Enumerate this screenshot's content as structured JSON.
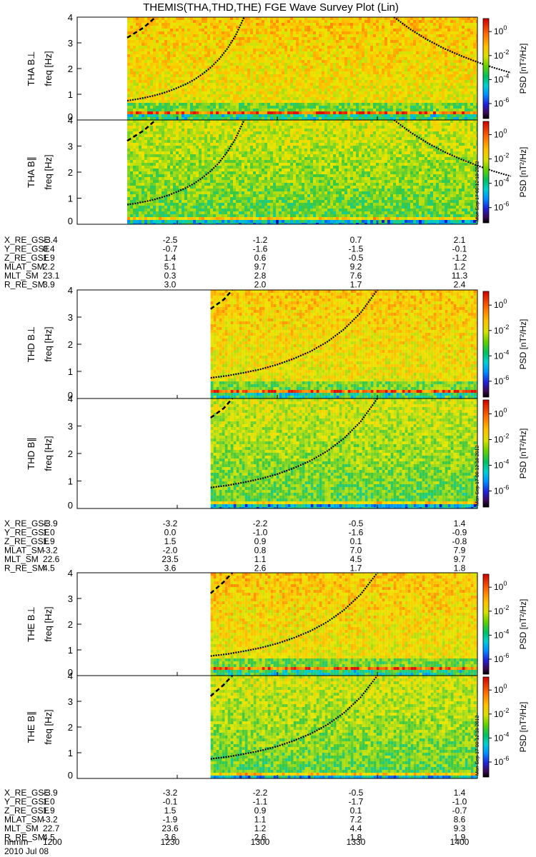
{
  "title": "THEMIS(THA,THD,THE) FGE Wave Survey Plot (Lin)",
  "stamp": "Mon Sep 17 00:12:18 2012",
  "date": "2010 Jul 08",
  "time_row": {
    "label": "hhmm",
    "values": [
      "1200",
      "1230",
      "1300",
      "1330",
      "1400"
    ]
  },
  "colorbar": {
    "label": "PSD [nT²/Hz]",
    "ticks": [
      {
        "base": "10",
        "exp": "0",
        "frac": 0.13
      },
      {
        "base": "10",
        "exp": "-2",
        "frac": 0.37
      },
      {
        "base": "10",
        "exp": "-4",
        "frac": 0.61
      },
      {
        "base": "10",
        "exp": "-6",
        "frac": 0.85
      }
    ]
  },
  "freq_ticks": [
    "0",
    "1",
    "2",
    "3",
    "4"
  ],
  "chart_data": [
    {
      "type": "heatmap",
      "probe": "THA",
      "panels": [
        {
          "name": "THA B⊥",
          "ylabel": "freq [Hz]",
          "ylim": [
            0,
            4
          ],
          "data_start": 1215,
          "bright_line": true,
          "curve_left": [
            [
              1215.0,
              0.75
            ],
            [
              1217.5,
              0.8
            ],
            [
              1220.0,
              0.86
            ],
            [
              1222.5,
              0.93
            ],
            [
              1225.0,
              1.02
            ],
            [
              1227.5,
              1.12
            ],
            [
              1230.0,
              1.25
            ],
            [
              1232.5,
              1.39
            ],
            [
              1235.0,
              1.56
            ],
            [
              1237.5,
              1.78
            ],
            [
              1240.0,
              2.04
            ],
            [
              1242.5,
              2.36
            ],
            [
              1245.0,
              2.77
            ],
            [
              1247.5,
              3.29
            ],
            [
              1250.0,
              3.98
            ],
            [
              1250.1,
              4.0
            ]
          ],
          "curve_right": [
            [
              1335.0,
              4.0
            ],
            [
              1340.0,
              3.52
            ],
            [
              1345.0,
              3.12
            ],
            [
              1350.0,
              2.78
            ],
            [
              1355.0,
              2.5
            ],
            [
              1360.0,
              2.25
            ],
            [
              1365.0,
              2.03
            ],
            [
              1370.0,
              1.84
            ]
          ],
          "curve_dashed": [
            [
              1215.0,
              3.2
            ],
            [
              1220.0,
              3.6
            ],
            [
              1223.5,
              4.0
            ]
          ]
        },
        {
          "name": "THA B∥",
          "ylabel": "freq [Hz]",
          "ylim": [
            0,
            4
          ],
          "data_start": 1215,
          "bright_line": false,
          "curve_left": [
            [
              1215.0,
              0.75
            ],
            [
              1217.5,
              0.8
            ],
            [
              1220.0,
              0.86
            ],
            [
              1222.5,
              0.93
            ],
            [
              1225.0,
              1.02
            ],
            [
              1227.5,
              1.12
            ],
            [
              1230.0,
              1.25
            ],
            [
              1232.5,
              1.39
            ],
            [
              1235.0,
              1.56
            ],
            [
              1237.5,
              1.78
            ],
            [
              1240.0,
              2.04
            ],
            [
              1242.5,
              2.36
            ],
            [
              1245.0,
              2.77
            ],
            [
              1247.5,
              3.29
            ],
            [
              1250.0,
              3.98
            ],
            [
              1250.1,
              4.0
            ]
          ],
          "curve_right": [
            [
              1335.0,
              4.0
            ],
            [
              1340.0,
              3.52
            ],
            [
              1345.0,
              3.12
            ],
            [
              1350.0,
              2.78
            ],
            [
              1355.0,
              2.5
            ],
            [
              1360.0,
              2.25
            ],
            [
              1365.0,
              2.03
            ],
            [
              1370.0,
              1.84
            ]
          ],
          "curve_dashed": [
            [
              1215.0,
              3.2
            ],
            [
              1220.0,
              3.6
            ],
            [
              1223.5,
              4.0
            ]
          ]
        }
      ],
      "ephemeris": [
        {
          "label": "X_RE_GSE",
          "values": [
            "-3.4",
            "-2.5",
            "-1.2",
            "0.7",
            "2.1"
          ]
        },
        {
          "label": "Y_RE_GSE",
          "values": [
            "0.4",
            "-0.7",
            "-1.6",
            "-1.5",
            "-0.1"
          ]
        },
        {
          "label": "Z_RE_GSE",
          "values": [
            "1.9",
            "1.4",
            "0.6",
            "-0.5",
            "-1.2"
          ]
        },
        {
          "label": "MLAT_SM",
          "values": [
            "2.2",
            "5.1",
            "9.7",
            "9.2",
            "1.2"
          ]
        },
        {
          "label": "MLT_SM",
          "values": [
            "23.1",
            "0.3",
            "2.8",
            "7.6",
            "11.3"
          ]
        },
        {
          "label": "R_RE_SM",
          "values": [
            "3.9",
            "3.0",
            "2.0",
            "1.7",
            "2.4"
          ]
        }
      ]
    },
    {
      "type": "heatmap",
      "probe": "THD",
      "panels": [
        {
          "name": "THD B⊥",
          "ylabel": "freq [Hz]",
          "ylim": [
            0,
            4
          ],
          "data_start": 1240,
          "bright_line": true,
          "curve_left": [
            [
              1240.0,
              0.76
            ],
            [
              1245.0,
              0.84
            ],
            [
              1250.0,
              0.95
            ],
            [
              1255.0,
              1.08
            ],
            [
              1260.0,
              1.25
            ],
            [
              1265.0,
              1.47
            ],
            [
              1270.0,
              1.74
            ],
            [
              1275.0,
              2.09
            ],
            [
              1280.0,
              2.55
            ],
            [
              1285.0,
              3.16
            ],
            [
              1290.0,
              4.0
            ]
          ],
          "curve_right": [],
          "curve_dashed": [
            [
              1240.0,
              3.3
            ],
            [
              1244.0,
              3.65
            ],
            [
              1246.5,
              4.0
            ]
          ]
        },
        {
          "name": "THD B∥",
          "ylabel": "freq [Hz]",
          "ylim": [
            0,
            4
          ],
          "data_start": 1240,
          "bright_line": false,
          "curve_left": [
            [
              1240.0,
              0.76
            ],
            [
              1245.0,
              0.84
            ],
            [
              1250.0,
              0.95
            ],
            [
              1255.0,
              1.08
            ],
            [
              1260.0,
              1.25
            ],
            [
              1265.0,
              1.47
            ],
            [
              1270.0,
              1.74
            ],
            [
              1275.0,
              2.09
            ],
            [
              1280.0,
              2.55
            ],
            [
              1285.0,
              3.16
            ],
            [
              1290.0,
              4.0
            ]
          ],
          "curve_right": [],
          "curve_dashed": [
            [
              1240.0,
              3.3
            ],
            [
              1244.0,
              3.65
            ],
            [
              1246.5,
              4.0
            ]
          ]
        }
      ],
      "ephemeris": [
        {
          "label": "X_RE_GSE",
          "values": [
            "-3.9",
            "-3.2",
            "-2.2",
            "-0.5",
            "1.4"
          ]
        },
        {
          "label": "Y_RE_GSE",
          "values": [
            "1.0",
            "0.0",
            "-1.0",
            "-1.6",
            "-0.9"
          ]
        },
        {
          "label": "Z_RE_GSE",
          "values": [
            "1.9",
            "1.5",
            "0.9",
            "0.1",
            "-0.8"
          ]
        },
        {
          "label": "MLAT_SM",
          "values": [
            "-3.2",
            "-2.0",
            "0.8",
            "7.0",
            "7.9"
          ]
        },
        {
          "label": "MLT_SM",
          "values": [
            "22.6",
            "23.5",
            "1.1",
            "4.5",
            "9.7"
          ]
        },
        {
          "label": "R_RE_SM",
          "values": [
            "4.5",
            "3.6",
            "2.6",
            "1.7",
            "1.8"
          ]
        }
      ]
    },
    {
      "type": "heatmap",
      "probe": "THE",
      "panels": [
        {
          "name": "THE B⊥",
          "ylabel": "freq [Hz]",
          "ylim": [
            0,
            4
          ],
          "data_start": 1240,
          "bright_line": true,
          "curve_left": [
            [
              1240.0,
              0.76
            ],
            [
              1245.0,
              0.84
            ],
            [
              1250.0,
              0.95
            ],
            [
              1255.0,
              1.08
            ],
            [
              1260.0,
              1.25
            ],
            [
              1265.0,
              1.47
            ],
            [
              1270.0,
              1.74
            ],
            [
              1275.0,
              2.09
            ],
            [
              1280.0,
              2.55
            ],
            [
              1285.0,
              3.16
            ],
            [
              1290.0,
              4.0
            ]
          ],
          "curve_right": [],
          "curve_dashed": [
            [
              1240.0,
              3.2
            ],
            [
              1244.0,
              3.65
            ],
            [
              1246.5,
              4.0
            ]
          ]
        },
        {
          "name": "THE B∥",
          "ylabel": "freq [Hz]",
          "ylim": [
            0,
            4
          ],
          "data_start": 1240,
          "bright_line": false,
          "curve_left": [
            [
              1240.0,
              0.76
            ],
            [
              1245.0,
              0.84
            ],
            [
              1250.0,
              0.95
            ],
            [
              1255.0,
              1.08
            ],
            [
              1260.0,
              1.25
            ],
            [
              1265.0,
              1.47
            ],
            [
              1270.0,
              1.74
            ],
            [
              1275.0,
              2.09
            ],
            [
              1280.0,
              2.55
            ],
            [
              1285.0,
              3.16
            ],
            [
              1290.0,
              4.0
            ]
          ],
          "curve_right": [],
          "curve_dashed": [
            [
              1240.0,
              3.2
            ],
            [
              1244.0,
              3.65
            ],
            [
              1246.5,
              4.0
            ]
          ]
        }
      ],
      "ephemeris": [
        {
          "label": "X_RE_GSE",
          "values": [
            "-3.9",
            "-3.2",
            "-2.2",
            "-0.5",
            "1.4"
          ]
        },
        {
          "label": "Y_RE_GSE",
          "values": [
            "1.0",
            "-0.1",
            "-1.1",
            "-1.7",
            "-1.0"
          ]
        },
        {
          "label": "Z_RE_GSE",
          "values": [
            "1.9",
            "1.5",
            "0.9",
            "0.1",
            "-0.7"
          ]
        },
        {
          "label": "MLAT_SM",
          "values": [
            "-3.2",
            "-1.9",
            "1.1",
            "7.2",
            "8.6"
          ]
        },
        {
          "label": "MLT_SM",
          "values": [
            "22.7",
            "23.6",
            "1.2",
            "4.4",
            "9.3"
          ]
        },
        {
          "label": "R_RE_SM",
          "values": [
            "4.5",
            "3.6",
            "2.6",
            "1.8",
            "1.9"
          ]
        }
      ]
    }
  ]
}
